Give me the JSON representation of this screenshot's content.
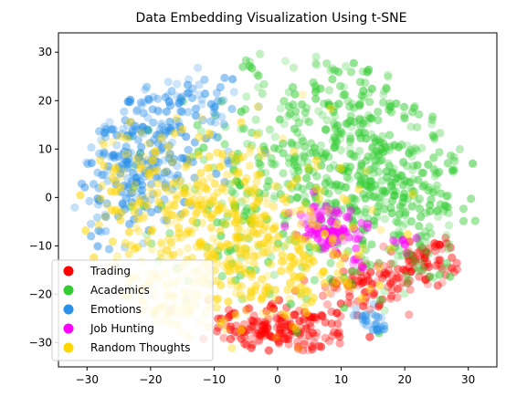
{
  "chart_data": {
    "type": "scatter",
    "title": "Data Embedding Visualization Using t-SNE",
    "xlabel": "",
    "ylabel": "",
    "xlim": [
      -34.5,
      34.5
    ],
    "ylim": [
      -35,
      34
    ],
    "x_ticks": [
      -30,
      -20,
      -10,
      0,
      10,
      20,
      30
    ],
    "y_ticks": [
      -30,
      -20,
      -10,
      0,
      10,
      20,
      30
    ],
    "grid": false,
    "legend_position": "lower-left",
    "series": [
      {
        "name": "Trading",
        "color": "#ff0000",
        "clusters": [
          {
            "center": [
              2,
              -27
            ],
            "spread": [
              4.5,
              2.5
            ],
            "count": 160
          },
          {
            "center": [
              14,
              -18
            ],
            "spread": [
              4,
              2.5
            ],
            "count": 90
          },
          {
            "center": [
              23,
              -13
            ],
            "spread": [
              3,
              2.5
            ],
            "count": 70
          },
          {
            "center": [
              -7,
              -25
            ],
            "spread": [
              2,
              2
            ],
            "count": 20
          }
        ]
      },
      {
        "name": "Academics",
        "color": "#33cc33",
        "clusters": [
          {
            "center": [
              12,
              10
            ],
            "spread": [
              9,
              11
            ],
            "count": 420
          },
          {
            "center": [
              20,
              -3
            ],
            "spread": [
              5,
              8
            ],
            "count": 150
          },
          {
            "center": [
              0,
              2
            ],
            "spread": [
              10,
              12
            ],
            "count": 200
          }
        ]
      },
      {
        "name": "Emotions",
        "color": "#2b90e8",
        "clusters": [
          {
            "center": [
              -21,
              10
            ],
            "spread": [
              5,
              7
            ],
            "count": 220
          },
          {
            "center": [
              -25,
              0
            ],
            "spread": [
              3,
              5
            ],
            "count": 60
          },
          {
            "center": [
              -13,
              20
            ],
            "spread": [
              4,
              3
            ],
            "count": 50
          },
          {
            "center": [
              15,
              -25.5
            ],
            "spread": [
              1.5,
              1.2
            ],
            "count": 25
          }
        ]
      },
      {
        "name": "Job Hunting",
        "color": "#ff00ff",
        "clusters": [
          {
            "center": [
              7,
              -6
            ],
            "spread": [
              2.5,
              2.5
            ],
            "count": 70
          },
          {
            "center": [
              10,
              -8
            ],
            "spread": [
              1.5,
              1.5
            ],
            "count": 25
          },
          {
            "center": [
              19,
              -9.5
            ],
            "spread": [
              1,
              1
            ],
            "count": 8
          },
          {
            "center": [
              13,
              -13
            ],
            "spread": [
              0.7,
              0.7
            ],
            "count": 6
          }
        ]
      },
      {
        "name": "Random Thoughts",
        "color": "#ffd500",
        "clusters": [
          {
            "center": [
              -8,
              -5
            ],
            "spread": [
              9,
              9
            ],
            "count": 350
          },
          {
            "center": [
              -18,
              -22
            ],
            "spread": [
              5,
              5
            ],
            "count": 100
          },
          {
            "center": [
              0,
              -15
            ],
            "spread": [
              8,
              6
            ],
            "count": 150
          },
          {
            "center": [
              -22,
              5
            ],
            "spread": [
              6,
              8
            ],
            "count": 80
          }
        ]
      }
    ]
  }
}
